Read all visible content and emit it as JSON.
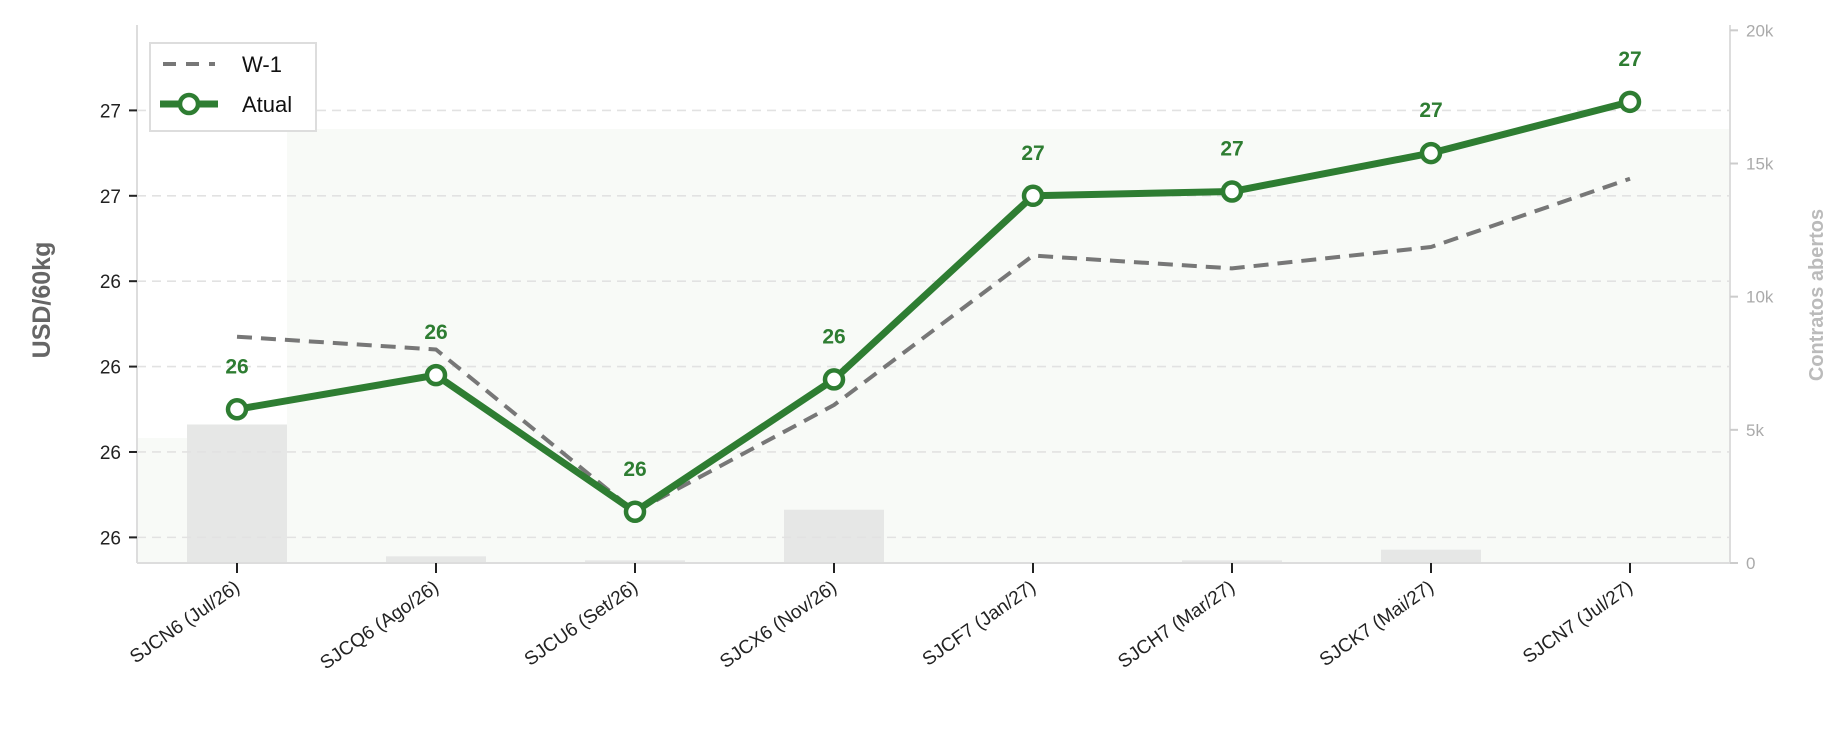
{
  "chart_data": {
    "type": "line",
    "categories": [
      "SJCN6 (Jul/26)",
      "SJCQ6 (Ago/26)",
      "SJCU6 (Set/26)",
      "SJCX6 (Nov/26)",
      "SJCF7 (Jan/27)",
      "SJCH7 (Mar/27)",
      "SJCK7 (Mai/27)",
      "SJCN7 (Jul/27)"
    ],
    "series": [
      {
        "name": "W-1",
        "style": "dashed",
        "color": "#777777",
        "values": [
          26.45,
          26.42,
          26.04,
          26.29,
          26.64,
          26.61,
          26.66,
          26.82
        ]
      },
      {
        "name": "Atual",
        "style": "solid-markers",
        "color": "#2e7d32",
        "values": [
          26.28,
          26.36,
          26.04,
          26.35,
          26.78,
          26.79,
          26.88,
          27.0
        ],
        "data_labels": [
          "26",
          "26",
          "26",
          "26",
          "27",
          "27",
          "27",
          "27"
        ]
      }
    ],
    "open_contracts": {
      "color": "#e6e7e6",
      "values": [
        5200,
        250,
        100,
        2000,
        0,
        100,
        500,
        0
      ]
    },
    "ylabel": "USD/60kg",
    "y2label": "Contratos abertos",
    "ylim": [
      25.92,
      27.18
    ],
    "y2lim": [
      0,
      20200
    ],
    "y_ticks": [
      25.98,
      26.18,
      26.38,
      26.58,
      26.78,
      26.98
    ],
    "y_tick_labels": [
      "26",
      "26",
      "26",
      "26",
      "27",
      "27"
    ],
    "y2_ticks": [
      0,
      5000,
      10000,
      15000,
      20000
    ],
    "y2_tick_labels": [
      "0",
      "5k",
      "10k",
      "15k",
      "20k"
    ],
    "grid": true,
    "legend_position": "top-left"
  }
}
